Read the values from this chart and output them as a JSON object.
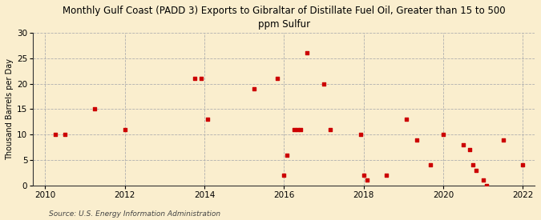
{
  "title": "Monthly Gulf Coast (PADD 3) Exports to Gibraltar of Distillate Fuel Oil, Greater than 15 to 500\nppm Sulfur",
  "ylabel": "Thousand Barrels per Day",
  "source": "Source: U.S. Energy Information Administration",
  "background_color": "#faeece",
  "dot_color": "#cc0000",
  "xlim": [
    2009.7,
    2022.3
  ],
  "ylim": [
    0,
    30
  ],
  "yticks": [
    0,
    5,
    10,
    15,
    20,
    25,
    30
  ],
  "xticks": [
    2010,
    2012,
    2014,
    2016,
    2018,
    2020,
    2022
  ],
  "x": [
    2010.25,
    2010.5,
    2011.25,
    2012.0,
    2013.75,
    2013.92,
    2014.08,
    2015.25,
    2015.83,
    2016.0,
    2016.08,
    2016.25,
    2016.33,
    2016.42,
    2016.58,
    2017.0,
    2017.17,
    2017.92,
    2018.0,
    2018.08,
    2018.58,
    2019.08,
    2019.33,
    2019.67,
    2020.0,
    2020.5,
    2020.67,
    2020.75,
    2020.83,
    2021.0,
    2021.08,
    2021.5,
    2022.0
  ],
  "y": [
    10,
    10,
    15,
    11,
    21,
    21,
    13,
    19,
    21,
    2,
    6,
    11,
    11,
    11,
    26,
    20,
    11,
    10,
    2,
    1,
    2,
    13,
    9,
    4,
    10,
    8,
    7,
    4,
    3,
    1,
    0,
    9,
    4
  ]
}
